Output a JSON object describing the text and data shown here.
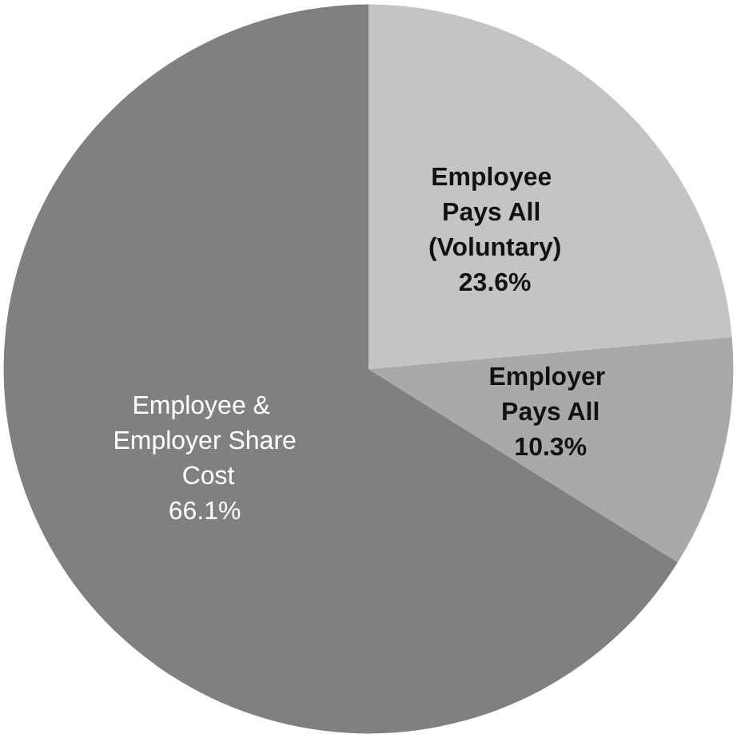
{
  "chart_data": {
    "type": "pie",
    "categories": [
      "Employee Pays All (Voluntary)",
      "Employer Pays All",
      "Employee & Employer Share Cost"
    ],
    "values": [
      23.6,
      10.3,
      66.1
    ],
    "colors": [
      "#c4c4c4",
      "#a9a9a9",
      "#808080"
    ],
    "value_labels": [
      "23.6%",
      "10.3%",
      "66.1%"
    ]
  }
}
